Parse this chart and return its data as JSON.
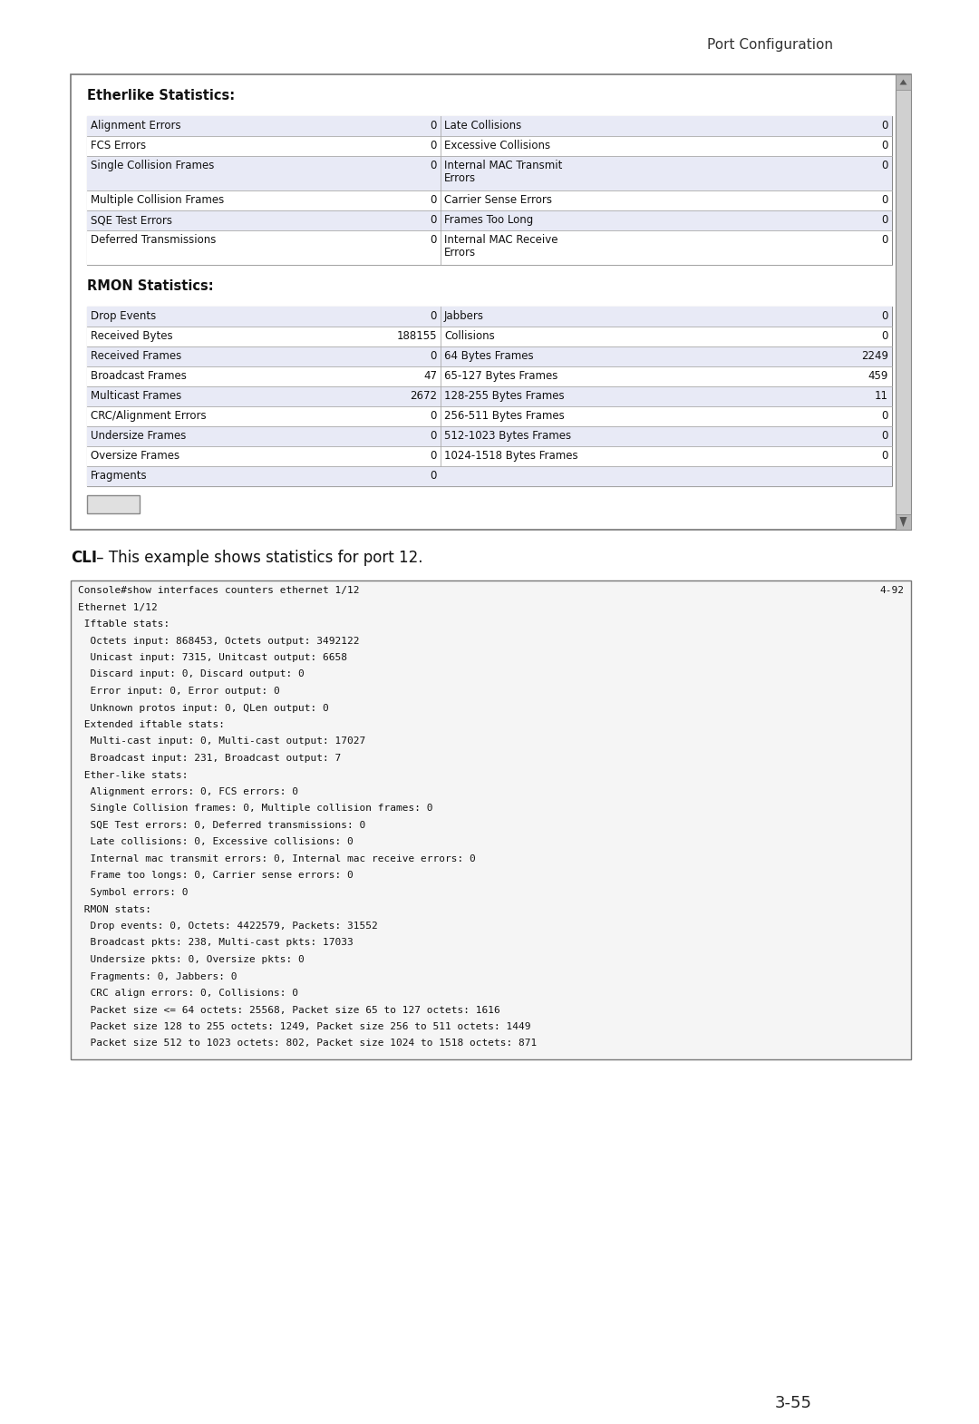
{
  "page_header": "Port Configuration",
  "page_number": "3-55",
  "cli_label_bold": "CLI",
  "cli_label_rest": " – This example shows statistics for port 12.",
  "etherlike_title": "Etherlike Statistics:",
  "rmon_title": "RMON Statistics:",
  "etherlike_rows": [
    [
      "Alignment Errors",
      "0",
      "Late Collisions",
      "0"
    ],
    [
      "FCS Errors",
      "0",
      "Excessive Collisions",
      "0"
    ],
    [
      "Single Collision Frames",
      "0",
      "Internal MAC Transmit\nErrors",
      "0"
    ],
    [
      "Multiple Collision Frames",
      "0",
      "Carrier Sense Errors",
      "0"
    ],
    [
      "SQE Test Errors",
      "0",
      "Frames Too Long",
      "0"
    ],
    [
      "Deferred Transmissions",
      "0",
      "Internal MAC Receive\nErrors",
      "0"
    ]
  ],
  "rmon_rows": [
    [
      "Drop Events",
      "0",
      "Jabbers",
      "0"
    ],
    [
      "Received Bytes",
      "188155",
      "Collisions",
      "0"
    ],
    [
      "Received Frames",
      "0",
      "64 Bytes Frames",
      "2249"
    ],
    [
      "Broadcast Frames",
      "47",
      "65-127 Bytes Frames",
      "459"
    ],
    [
      "Multicast Frames",
      "2672",
      "128-255 Bytes Frames",
      "11"
    ],
    [
      "CRC/Alignment Errors",
      "0",
      "256-511 Bytes Frames",
      "0"
    ],
    [
      "Undersize Frames",
      "0",
      "512-1023 Bytes Frames",
      "0"
    ],
    [
      "Oversize Frames",
      "0",
      "1024-1518 Bytes Frames",
      "0"
    ],
    [
      "Fragments",
      "0",
      "",
      ""
    ]
  ],
  "cli_code_lines": [
    "Console#show interfaces counters ethernet 1/12",
    "Ethernet 1/12",
    " Iftable stats:",
    "  Octets input: 868453, Octets output: 3492122",
    "  Unicast input: 7315, Unitcast output: 6658",
    "  Discard input: 0, Discard output: 0",
    "  Error input: 0, Error output: 0",
    "  Unknown protos input: 0, QLen output: 0",
    " Extended iftable stats:",
    "  Multi-cast input: 0, Multi-cast output: 17027",
    "  Broadcast input: 231, Broadcast output: 7",
    " Ether-like stats:",
    "  Alignment errors: 0, FCS errors: 0",
    "  Single Collision frames: 0, Multiple collision frames: 0",
    "  SQE Test errors: 0, Deferred transmissions: 0",
    "  Late collisions: 0, Excessive collisions: 0",
    "  Internal mac transmit errors: 0, Internal mac receive errors: 0",
    "  Frame too longs: 0, Carrier sense errors: 0",
    "  Symbol errors: 0",
    " RMON stats:",
    "  Drop events: 0, Octets: 4422579, Packets: 31552",
    "  Broadcast pkts: 238, Multi-cast pkts: 17033",
    "  Undersize pkts: 0, Oversize pkts: 0",
    "  Fragments: 0, Jabbers: 0",
    "  CRC align errors: 0, Collisions: 0",
    "  Packet size <= 64 octets: 25568, Packet size 65 to 127 octets: 1616",
    "  Packet size 128 to 255 octets: 1249, Packet size 256 to 511 octets: 1449",
    "  Packet size 512 to 1023 octets: 802, Packet size 1024 to 1518 octets: 871"
  ],
  "cli_page_ref": "4-92"
}
